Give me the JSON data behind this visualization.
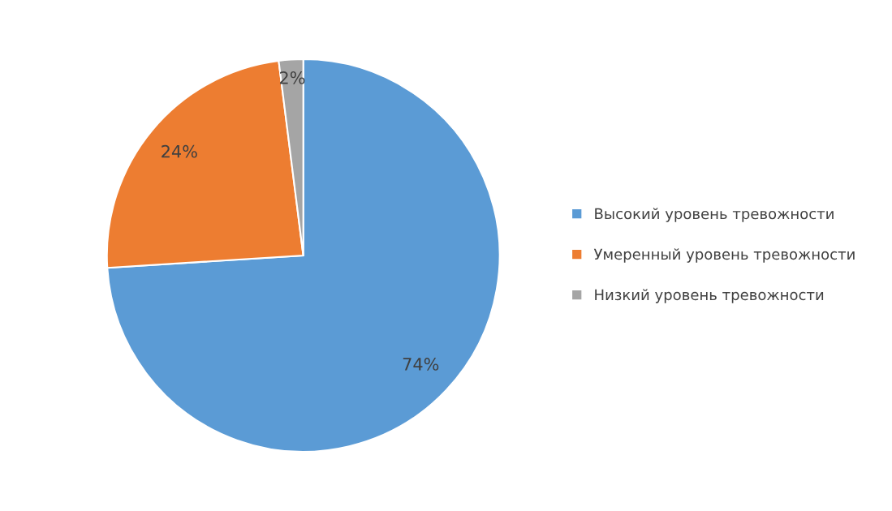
{
  "chart_data": {
    "type": "pie",
    "categories": [
      "Высокий уровень тревожности",
      "Умеренный уровень тревожности",
      "Низкий уровень тревожности"
    ],
    "values": [
      74,
      24,
      2
    ],
    "colors": [
      "#5b9bd5",
      "#ed7d31",
      "#a5a5a5"
    ],
    "value_labels": [
      "74%",
      "24%",
      "2%"
    ],
    "legend": "right"
  }
}
